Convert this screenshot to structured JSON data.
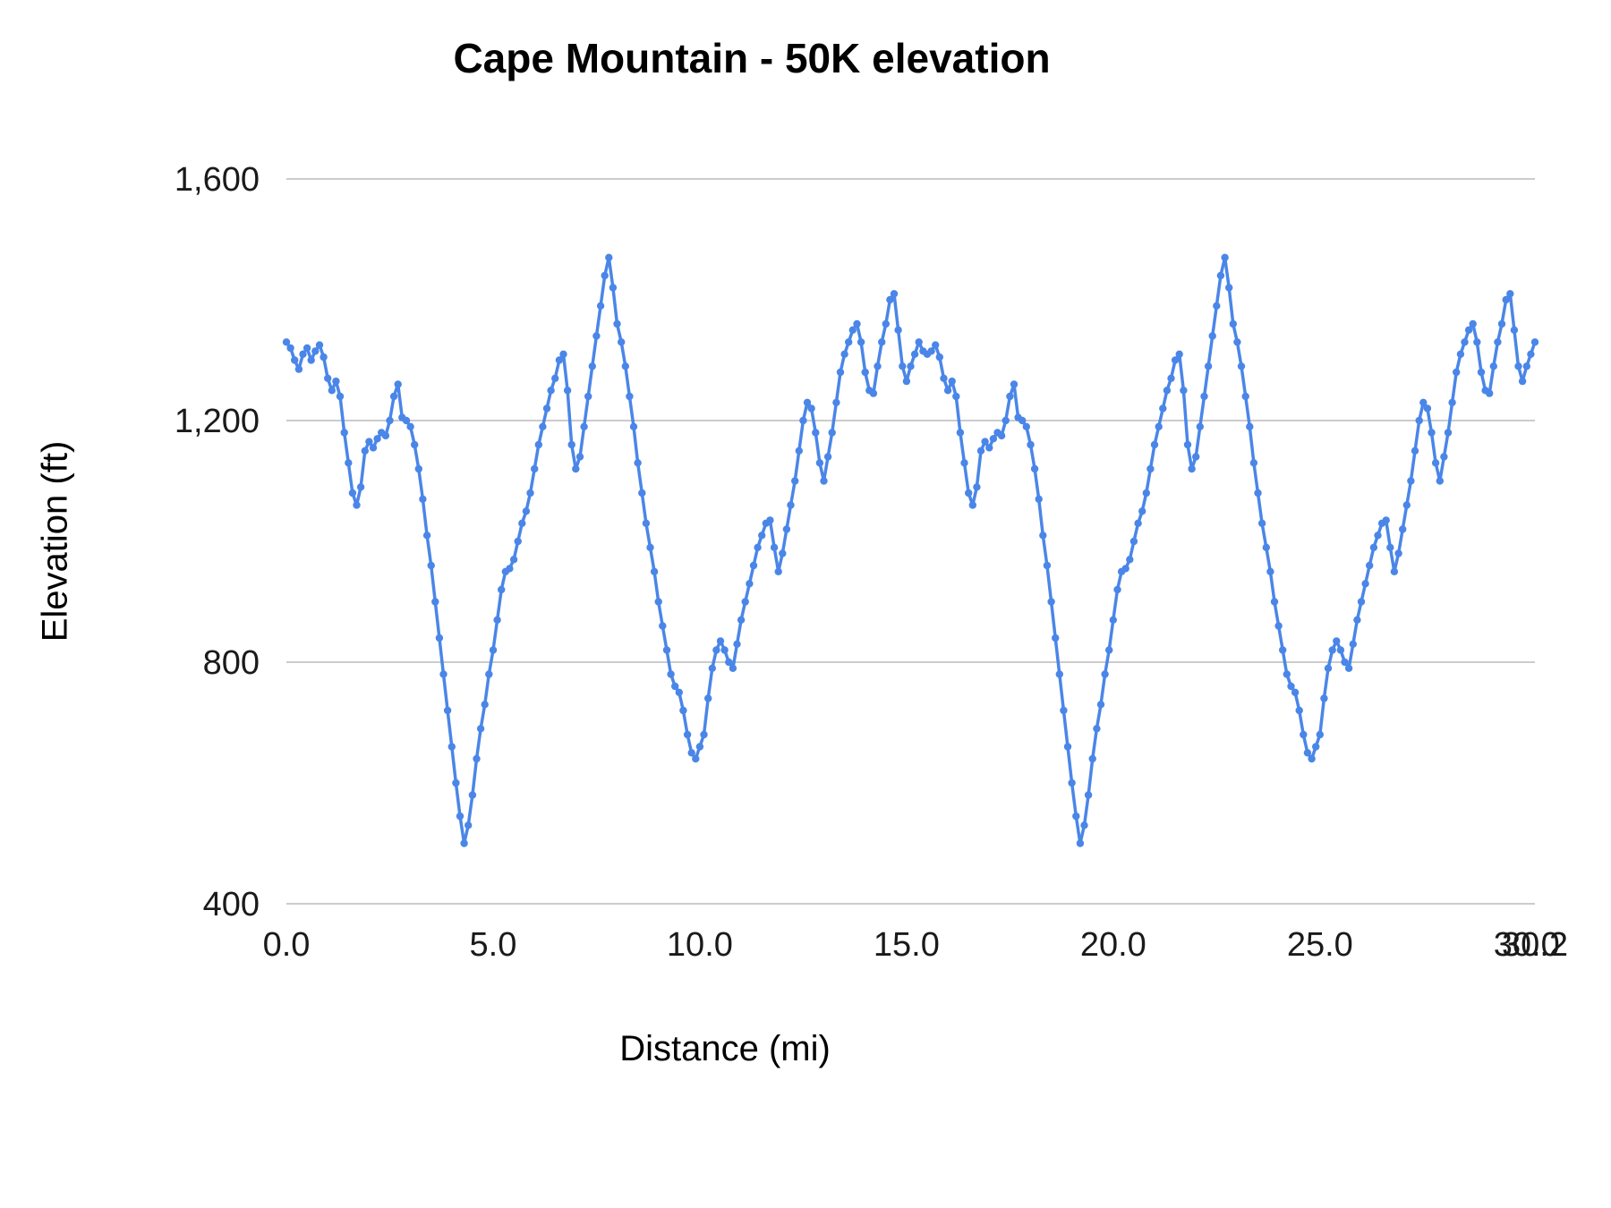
{
  "chart": {
    "title": "Cape Mountain - 50K elevation",
    "x_axis_label": "Distance (mi)",
    "y_axis_label": "Elevation (ft)"
  },
  "chart_data": {
    "type": "line",
    "title": "Cape Mountain - 50K elevation",
    "xlabel": "Distance (mi)",
    "ylabel": "Elevation (ft)",
    "legend": "none",
    "grid": "horizontal",
    "line_color": "#4a86e8",
    "grid_color": "#cccccc",
    "marker": "circle",
    "x_start": 0.0,
    "x_step": 0.1,
    "x_range": [
      0,
      30.2
    ],
    "ylim": [
      400,
      1600
    ],
    "x_ticks": [
      {
        "value": 0,
        "label": "0.0"
      },
      {
        "value": 5,
        "label": "5.0"
      },
      {
        "value": 10,
        "label": "10.0"
      },
      {
        "value": 15,
        "label": "15.0"
      },
      {
        "value": 20,
        "label": "20.0"
      },
      {
        "value": 25,
        "label": "25.0"
      },
      {
        "value": 30,
        "label": "30.0"
      },
      {
        "value": 30.2,
        "label": "30.2"
      }
    ],
    "y_ticks": [
      {
        "value": 400,
        "label": "400"
      },
      {
        "value": 800,
        "label": "800"
      },
      {
        "value": 1200,
        "label": "1,200"
      },
      {
        "value": 1600,
        "label": "1,600"
      }
    ],
    "values": [
      1330,
      1320,
      1300,
      1285,
      1310,
      1320,
      1300,
      1315,
      1325,
      1305,
      1270,
      1250,
      1265,
      1240,
      1180,
      1130,
      1080,
      1060,
      1090,
      1150,
      1165,
      1155,
      1170,
      1180,
      1175,
      1200,
      1240,
      1260,
      1205,
      1200,
      1190,
      1160,
      1120,
      1070,
      1010,
      960,
      900,
      840,
      780,
      720,
      660,
      600,
      545,
      500,
      530,
      580,
      640,
      690,
      730,
      780,
      820,
      870,
      920,
      950,
      955,
      970,
      1000,
      1030,
      1050,
      1080,
      1120,
      1160,
      1190,
      1220,
      1250,
      1270,
      1300,
      1310,
      1250,
      1160,
      1120,
      1140,
      1190,
      1240,
      1290,
      1340,
      1390,
      1440,
      1470,
      1420,
      1360,
      1330,
      1290,
      1240,
      1190,
      1130,
      1080,
      1030,
      990,
      950,
      900,
      860,
      820,
      780,
      760,
      750,
      720,
      680,
      650,
      640,
      660,
      680,
      740,
      790,
      820,
      835,
      820,
      800,
      790,
      830,
      870,
      900,
      930,
      960,
      990,
      1010,
      1030,
      1035,
      990,
      950,
      980,
      1020,
      1060,
      1100,
      1150,
      1200,
      1230,
      1220,
      1180,
      1130,
      1100,
      1140,
      1180,
      1230,
      1280,
      1310,
      1330,
      1350,
      1360,
      1330,
      1280,
      1250,
      1245,
      1290,
      1330,
      1360,
      1400,
      1410,
      1350,
      1290,
      1265,
      1290,
      1310,
      1330,
      1315,
      1310,
      1315,
      1325,
      1305,
      1270,
      1250,
      1265,
      1240,
      1180,
      1130,
      1080,
      1060,
      1090,
      1150,
      1165,
      1155,
      1170,
      1180,
      1175,
      1200,
      1240,
      1260,
      1205,
      1200,
      1190,
      1160,
      1120,
      1070,
      1010,
      960,
      900,
      840,
      780,
      720,
      660,
      600,
      545,
      500,
      530,
      580,
      640,
      690,
      730,
      780,
      820,
      870,
      920,
      950,
      955,
      970,
      1000,
      1030,
      1050,
      1080,
      1120,
      1160,
      1190,
      1220,
      1250,
      1270,
      1300,
      1310,
      1250,
      1160,
      1120,
      1140,
      1190,
      1240,
      1290,
      1340,
      1390,
      1440,
      1470,
      1420,
      1360,
      1330,
      1290,
      1240,
      1190,
      1130,
      1080,
      1030,
      990,
      950,
      900,
      860,
      820,
      780,
      760,
      750,
      720,
      680,
      650,
      640,
      660,
      680,
      740,
      790,
      820,
      835,
      820,
      800,
      790,
      830,
      870,
      900,
      930,
      960,
      990,
      1010,
      1030,
      1035,
      990,
      950,
      980,
      1020,
      1060,
      1100,
      1150,
      1200,
      1230,
      1220,
      1180,
      1130,
      1100,
      1140,
      1180,
      1230,
      1280,
      1310,
      1330,
      1350,
      1360,
      1330,
      1280,
      1250,
      1245,
      1290,
      1330,
      1360,
      1400,
      1410,
      1350,
      1290,
      1265,
      1290,
      1310,
      1330
    ]
  }
}
